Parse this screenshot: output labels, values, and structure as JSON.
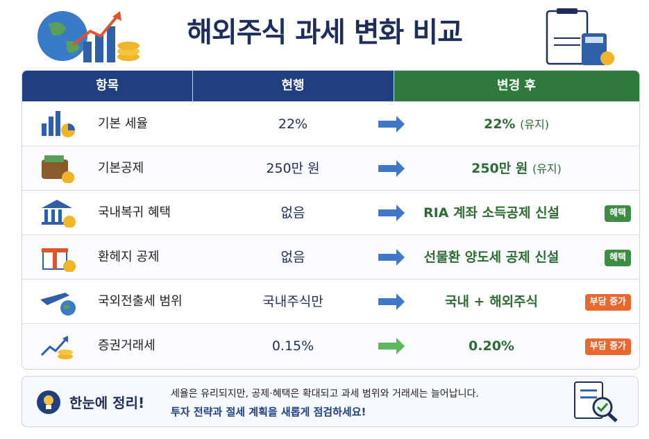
{
  "header": {
    "title": "해외주식 과세 변화 비교"
  },
  "table": {
    "headers": [
      "항목",
      "현행",
      "변경 후"
    ],
    "rows": [
      {
        "item": "기본 세율",
        "current": "22%",
        "after": "22%",
        "after_note": "(유지)"
      },
      {
        "item": "기본공제",
        "current": "250만 원",
        "after": "250만 원",
        "after_note": "(유지)"
      },
      {
        "item": "국내복귀 혜택",
        "current": "없음",
        "after": "RIA 계좌 소득공제 신설",
        "badge": "혜택"
      },
      {
        "item": "환헤지 공제",
        "current": "없음",
        "after": "선물환 양도세 공제 신설",
        "badge": "혜택"
      },
      {
        "item": "국외전출세 범위",
        "current": "국내주식만",
        "after": "국내 + 해외주식",
        "badge": "부담 증가"
      },
      {
        "item": "증권거래세",
        "current": "0.15%",
        "after": "0.20%",
        "badge": "부담 증가"
      }
    ]
  },
  "summary": {
    "label": "한눈에 정리!",
    "line1": "세율은 유리되지만, 공제·혜택은 확대되고 과세 범위와 거래세는 늘어납니다.",
    "line2": "투자 전략과 절세 계획을 새롭게 점검하세요!"
  }
}
